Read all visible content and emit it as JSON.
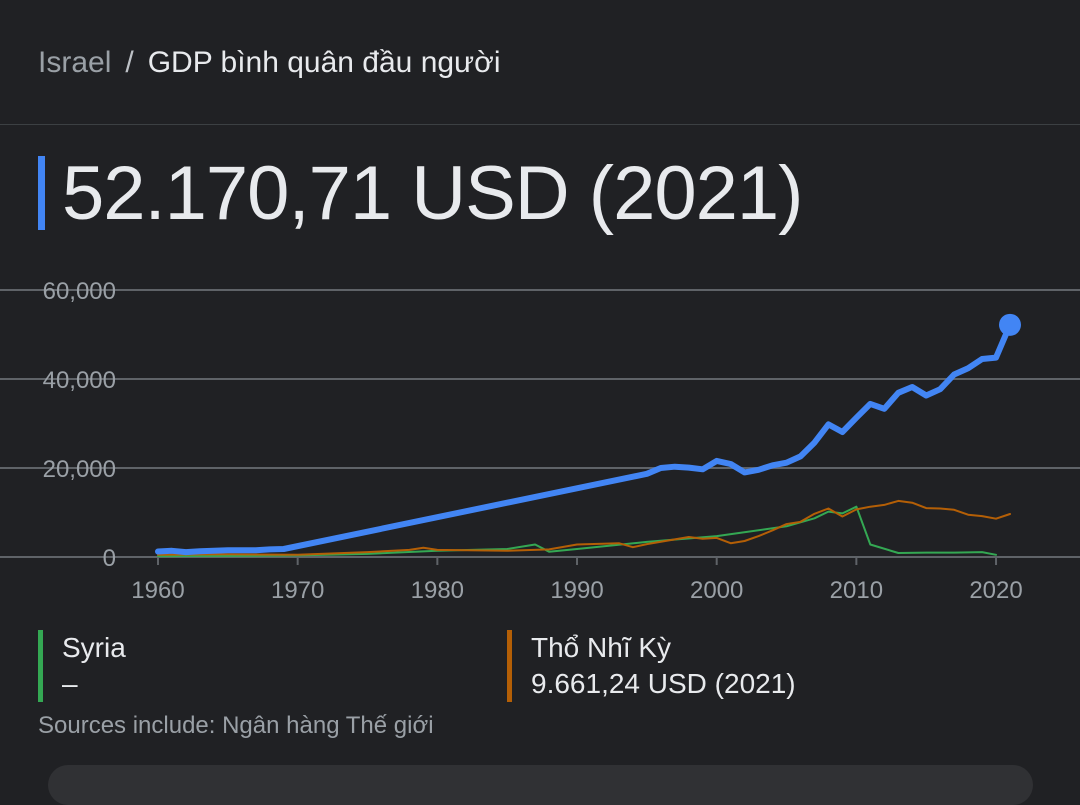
{
  "breadcrumb": {
    "root": "Israel",
    "separator": "/",
    "current": "GDP bình quân đầu người"
  },
  "headline": {
    "value": "52.170,71 USD (2021)"
  },
  "legend": [
    {
      "name": "Syria",
      "value": "–",
      "color": "#34a853"
    },
    {
      "name": "Thổ Nhĩ Kỳ",
      "value": "9.661,24 USD (2021)",
      "color": "#b45f06"
    }
  ],
  "sources": "Sources include: Ngân hàng Thế giới",
  "colors": {
    "israel": "#4285f4",
    "syria": "#34a853",
    "turkey": "#b45f06",
    "grid": "#5f6368",
    "background": "#202124"
  },
  "chart_data": {
    "type": "line",
    "title": "",
    "xlabel": "",
    "ylabel": "",
    "xlim": [
      1960,
      2021
    ],
    "ylim": [
      0,
      60000
    ],
    "xticks": [
      "1960",
      "1970",
      "1980",
      "1990",
      "2000",
      "2010",
      "2020"
    ],
    "yticks": [
      "0",
      "20,000",
      "40,000",
      "60,000"
    ],
    "grid": true,
    "series": [
      {
        "name": "Israel",
        "color": "#4285f4",
        "x": [
          1960,
          1961,
          1962,
          1963,
          1964,
          1965,
          1966,
          1967,
          1968,
          1969,
          1995,
          1996,
          1997,
          1998,
          1999,
          2000,
          2001,
          2002,
          2003,
          2004,
          2005,
          2006,
          2007,
          2008,
          2009,
          2010,
          2011,
          2012,
          2013,
          2014,
          2015,
          2016,
          2017,
          2018,
          2019,
          2020,
          2021
        ],
        "y": [
          1230,
          1400,
          1100,
          1300,
          1400,
          1500,
          1500,
          1500,
          1700,
          1800,
          18700,
          20000,
          20300,
          20100,
          19700,
          21600,
          20900,
          19000,
          19600,
          20600,
          21200,
          22600,
          25700,
          29800,
          28100,
          31300,
          34400,
          33300,
          36900,
          38200,
          36300,
          37700,
          41000,
          42400,
          44500,
          44800,
          52171
        ]
      },
      {
        "name": "Syria",
        "color": "#34a853",
        "x": [
          1960,
          1965,
          1970,
          1975,
          1980,
          1985,
          1987,
          1988,
          1990,
          1995,
          2000,
          2005,
          2007,
          2008,
          2009,
          2010,
          2011,
          2013,
          2015,
          2017,
          2019,
          2020
        ],
        "y": [
          200,
          250,
          350,
          700,
          1400,
          1800,
          2800,
          1200,
          1800,
          3400,
          4700,
          6900,
          8700,
          10200,
          9800,
          11300,
          2800,
          900,
          1000,
          1000,
          1100,
          500
        ]
      },
      {
        "name": "Thổ Nhĩ Kỳ",
        "color": "#b45f06",
        "x": [
          1960,
          1965,
          1970,
          1975,
          1978,
          1979,
          1980,
          1985,
          1988,
          1990,
          1993,
          1994,
          1995,
          1998,
          1999,
          2000,
          2001,
          2002,
          2003,
          2004,
          2005,
          2006,
          2007,
          2008,
          2009,
          2010,
          2011,
          2012,
          2013,
          2014,
          2015,
          2016,
          2017,
          2018,
          2019,
          2020,
          2021
        ],
        "y": [
          500,
          600,
          500,
          1100,
          1600,
          2100,
          1600,
          1400,
          1700,
          2800,
          3100,
          2200,
          2900,
          4500,
          4100,
          4300,
          3100,
          3600,
          4700,
          6000,
          7400,
          7900,
          9700,
          10900,
          9100,
          10700,
          11300,
          11700,
          12600,
          12200,
          11000,
          10900,
          10600,
          9500,
          9200,
          8600,
          9661
        ]
      }
    ],
    "marker": {
      "series": "Israel",
      "x": 2021,
      "y": 52171
    }
  }
}
